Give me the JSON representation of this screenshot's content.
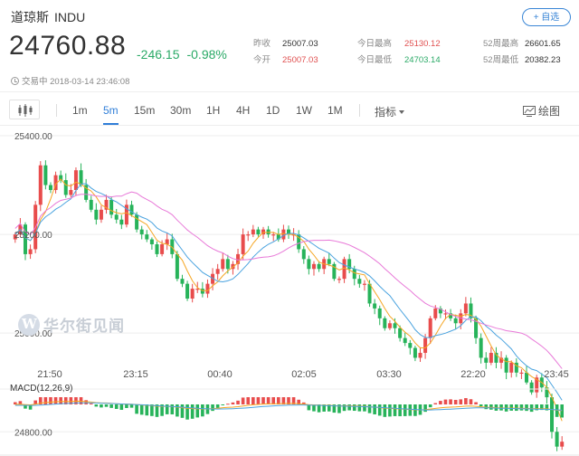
{
  "header": {
    "name": "道琼斯",
    "code": "INDU",
    "follow_label": "+ 自选",
    "price": "24760.88",
    "change": "-246.15",
    "change_pct": "-0.98%",
    "status": "交易中 2018-03-14 23:46:08"
  },
  "stats": [
    {
      "label": "昨收",
      "value": "25007.03",
      "color": "#333333"
    },
    {
      "label": "今开",
      "value": "25007.03",
      "color": "#e05050"
    },
    {
      "label": "今日最高",
      "value": "25130.12",
      "color": "#e05050"
    },
    {
      "label": "今日最低",
      "value": "24703.14",
      "color": "#2baa67"
    },
    {
      "label": "52周最高",
      "value": "26601.65",
      "color": "#333333"
    },
    {
      "label": "52周最低",
      "value": "20382.23",
      "color": "#333333"
    }
  ],
  "toolbar": {
    "chart_type_icon": "candlestick-icon",
    "periods": [
      "1m",
      "5m",
      "15m",
      "30m",
      "1H",
      "4H",
      "1D",
      "1W",
      "1M"
    ],
    "active_period": "5m",
    "indicator_label": "指标",
    "draw_label": "绘图",
    "draw_icon": "draw-chart-icon"
  },
  "watermark": "华尔街见闻",
  "macd_label": "MACD(12,26,9)",
  "colors": {
    "up": "#e84c4c",
    "down": "#27b35a",
    "ma1": "#f5a623",
    "ma2": "#4aa3df",
    "ma3": "#e879d8",
    "accent": "#2f7ed8"
  },
  "chart_data": {
    "type": "candlestick",
    "y_ticks": [
      "25400.00",
      "25200.00",
      "25000.00",
      "24800.00"
    ],
    "x_ticks": [
      "21:50",
      "23:15",
      "00:40",
      "02:05",
      "03:30",
      "22:20",
      "23:45"
    ],
    "close": [
      25200,
      25220,
      25160,
      25170,
      25260,
      25340,
      25300,
      25290,
      25320,
      25310,
      25280,
      25290,
      25330,
      25300,
      25270,
      25250,
      25230,
      25250,
      25270,
      25240,
      25230,
      25220,
      25260,
      25240,
      25210,
      25200,
      25190,
      25180,
      25160,
      25180,
      25190,
      25160,
      25110,
      25100,
      25070,
      25090,
      25090,
      25080,
      25100,
      25120,
      25130,
      25150,
      25130,
      25140,
      25160,
      25200,
      25200,
      25210,
      25200,
      25210,
      25200,
      25200,
      25190,
      25210,
      25200,
      25200,
      25170,
      25150,
      25130,
      25140,
      25130,
      25150,
      25140,
      25110,
      25110,
      25150,
      25130,
      25110,
      25100,
      25100,
      25060,
      25050,
      25030,
      25010,
      25020,
      25010,
      24990,
      24980,
      24970,
      24950,
      24960,
      24990,
      25030,
      25050,
      25040,
      25040,
      25030,
      25020,
      25040,
      25060,
      25030,
      24990,
      24950,
      24940,
      24960,
      24940,
      24950,
      24920,
      24940,
      24920,
      24920,
      24900,
      24880,
      24910,
      24890,
      24870,
      24800,
      24770,
      24780
    ]
  }
}
